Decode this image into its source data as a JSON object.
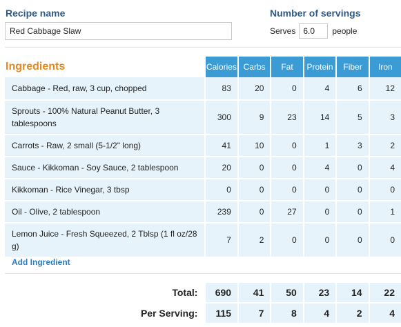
{
  "recipe": {
    "label": "Recipe name",
    "value": "Red Cabbage Slaw"
  },
  "servings": {
    "label": "Number of servings",
    "prefix": "Serves",
    "value": "6.0",
    "suffix": "people"
  },
  "ingredients": {
    "title": "Ingredients",
    "columns": [
      "Calories",
      "Carbs",
      "Fat",
      "Protein",
      "Fiber",
      "Iron"
    ],
    "rows": [
      {
        "name": "Cabbage - Red, raw, 3 cup, chopped",
        "values": [
          "83",
          "20",
          "0",
          "4",
          "6",
          "12"
        ]
      },
      {
        "name": "Sprouts - 100% Natural Peanut Butter, 3 tablespoons",
        "values": [
          "300",
          "9",
          "23",
          "14",
          "5",
          "3"
        ]
      },
      {
        "name": "Carrots - Raw, 2 small (5-1/2\" long)",
        "values": [
          "41",
          "10",
          "0",
          "1",
          "3",
          "2"
        ]
      },
      {
        "name": "Sauce - Kikkoman - Soy Sauce, 2 tablespoon",
        "values": [
          "20",
          "0",
          "0",
          "4",
          "0",
          "4"
        ]
      },
      {
        "name": "Kikkoman - Rice Vinegar, 3 tbsp",
        "values": [
          "0",
          "0",
          "0",
          "0",
          "0",
          "0"
        ]
      },
      {
        "name": "Oil - Olive, 2 tablespoon",
        "values": [
          "239",
          "0",
          "27",
          "0",
          "0",
          "1"
        ]
      },
      {
        "name": "Lemon Juice - Fresh Squeezed, 2 Tblsp (1 fl oz/28 g)",
        "values": [
          "7",
          "2",
          "0",
          "0",
          "0",
          "0"
        ]
      }
    ],
    "add_label": "Add Ingredient"
  },
  "totals": {
    "total_label": "Total:",
    "total_values": [
      "690",
      "41",
      "50",
      "23",
      "14",
      "22"
    ],
    "per_serving_label": "Per Serving:",
    "per_serving_values": [
      "115",
      "7",
      "8",
      "4",
      "2",
      "4"
    ]
  },
  "colors": {
    "header_blue": "#3a9bd5",
    "row_bg": "#e6f3fb",
    "title_orange": "#e68a1e",
    "label_blue": "#2e5a88",
    "link_blue": "#2e7bbf"
  }
}
